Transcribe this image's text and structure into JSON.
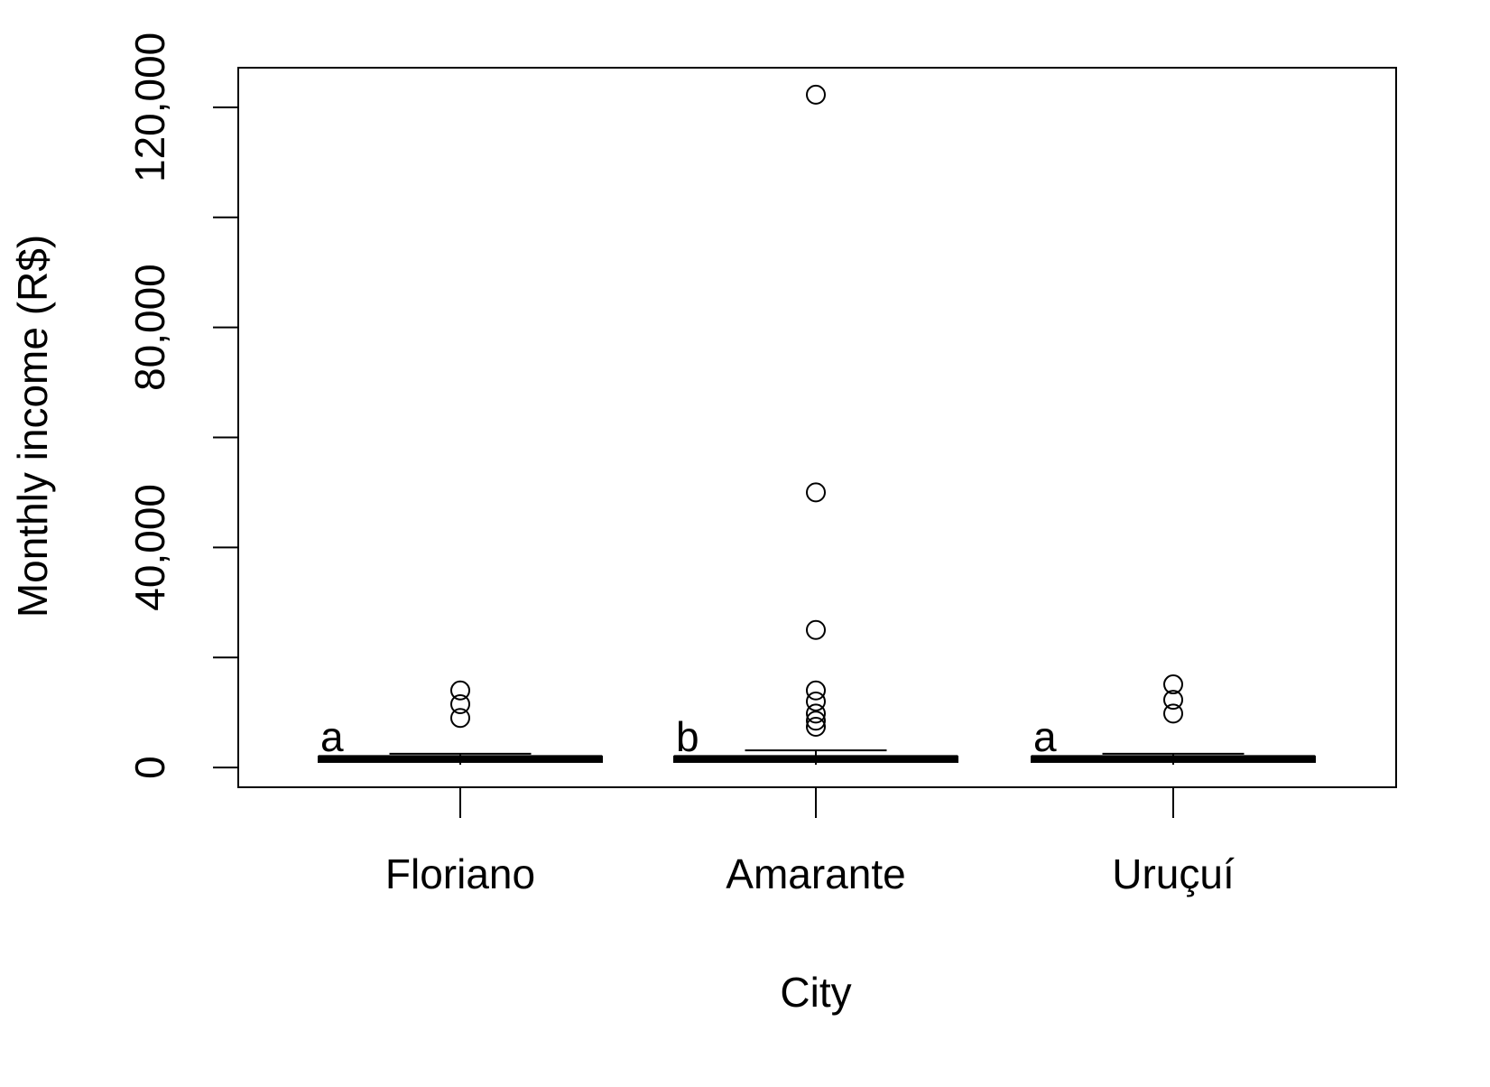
{
  "chart_data": {
    "type": "boxplot",
    "x_label": "City",
    "y_label": "Monthly income (R$)",
    "categories": [
      "Floriano",
      "Amarante",
      "Uruçuí"
    ],
    "boxes": [
      {
        "q1": 1000,
        "median": 1600,
        "q3": 2000,
        "whisker_low": 500,
        "whisker_high": 2500,
        "outliers": [
          14000,
          11500,
          9000
        ]
      },
      {
        "q1": 1000,
        "median": 1600,
        "q3": 2000,
        "whisker_low": 500,
        "whisker_high": 3100,
        "outliers": [
          122300,
          50000,
          25000,
          14000,
          12000,
          9800,
          8500,
          7400
        ]
      },
      {
        "q1": 1000,
        "median": 1600,
        "q3": 2000,
        "whisker_low": 500,
        "whisker_high": 2500,
        "outliers": [
          15100,
          12300,
          9800
        ]
      }
    ],
    "group_letters": [
      "a",
      "b",
      "a"
    ],
    "ylim": [
      -3600,
      127200
    ],
    "yticks": [
      0,
      {
        "value": 40000,
        "label": "40,000"
      },
      {
        "value": 80000,
        "label": "80,000"
      },
      {
        "value": 120000,
        "label": "120,000"
      }
    ],
    "minor_yticks": [
      20000,
      60000,
      100000
    ],
    "color": "#000000"
  }
}
